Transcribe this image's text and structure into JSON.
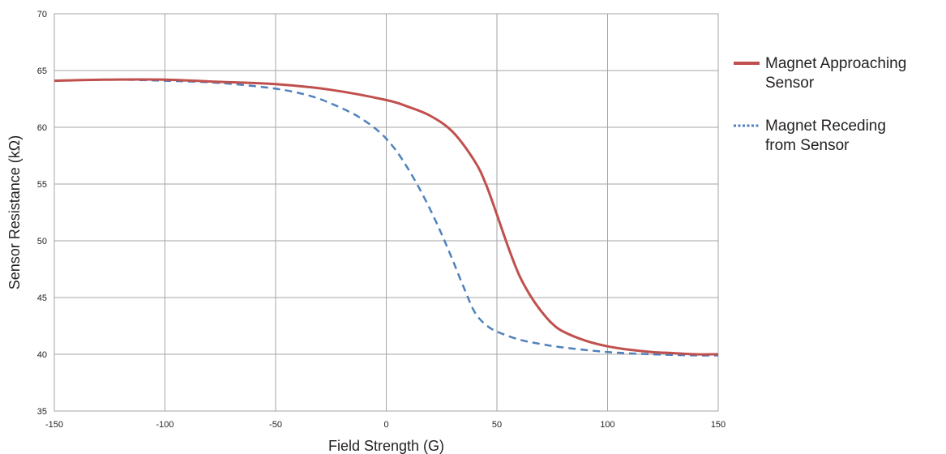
{
  "chart_data": {
    "type": "line",
    "xlabel": "Field Strength (G)",
    "ylabel": "Sensor Resistance (kΩ)",
    "xlim": [
      -150,
      150
    ],
    "ylim": [
      35,
      70
    ],
    "x_ticks": [
      -150,
      -100,
      -50,
      0,
      50,
      100,
      150
    ],
    "y_ticks": [
      35,
      40,
      45,
      50,
      55,
      60,
      65,
      70
    ],
    "x_tick_labels": [
      "-150",
      "-100",
      "-50",
      "0",
      "50",
      "100",
      "150"
    ],
    "y_tick_labels": [
      "35",
      "40",
      "45",
      "50",
      "55",
      "60",
      "65",
      "70"
    ],
    "grid": true,
    "legend_position": "right",
    "series": [
      {
        "name": "Magnet Approaching Sensor",
        "legend_lines": [
          "Magnet Approaching",
          "Sensor"
        ],
        "color": "#c0504d",
        "style": "solid",
        "x": [
          -150,
          -125,
          -100,
          -75,
          -50,
          -25,
          0,
          10,
          20,
          30,
          40,
          45,
          50,
          55,
          60,
          65,
          70,
          75,
          80,
          90,
          100,
          110,
          120,
          130,
          140,
          150
        ],
        "y": [
          64.1,
          64.2,
          64.2,
          64.0,
          63.8,
          63.3,
          62.4,
          61.8,
          61.0,
          59.6,
          57.0,
          55.0,
          52.3,
          49.5,
          47.0,
          45.2,
          43.8,
          42.7,
          42.0,
          41.2,
          40.7,
          40.4,
          40.2,
          40.1,
          40.0,
          40.0
        ]
      },
      {
        "name": "Magnet Receding from Sensor",
        "legend_lines": [
          "Magnet Receding",
          "from Sensor"
        ],
        "color": "#4f81bd",
        "style": "dashed",
        "x": [
          -150,
          -125,
          -100,
          -75,
          -50,
          -35,
          -25,
          -15,
          -10,
          -5,
          0,
          5,
          10,
          15,
          20,
          25,
          30,
          35,
          40,
          45,
          50,
          60,
          70,
          80,
          100,
          120,
          140,
          150
        ],
        "y": [
          64.1,
          64.2,
          64.1,
          63.9,
          63.4,
          62.8,
          62.1,
          61.2,
          60.6,
          59.9,
          59.0,
          57.8,
          56.3,
          54.6,
          52.7,
          50.6,
          48.3,
          45.9,
          43.7,
          42.6,
          42.0,
          41.3,
          40.9,
          40.6,
          40.2,
          40.0,
          39.9,
          39.9
        ]
      }
    ]
  }
}
